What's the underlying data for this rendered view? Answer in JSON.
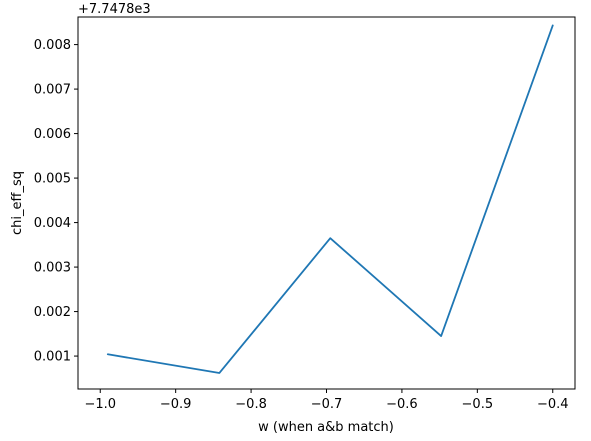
{
  "chart_data": {
    "type": "line",
    "title": "",
    "xlabel": "w (when a&b match)",
    "ylabel": "chi_eff_sq",
    "y_offset_label": "+7.7478e3",
    "xlim": [
      -1.0295,
      -0.3705
    ],
    "ylim": [
      0.00026,
      0.00862
    ],
    "x_ticks": [
      -1.0,
      -0.9,
      -0.8,
      -0.7,
      -0.6,
      -0.5,
      -0.4
    ],
    "x_tick_labels": [
      "−1.0",
      "−0.9",
      "−0.8",
      "−0.7",
      "−0.6",
      "−0.5",
      "−0.4"
    ],
    "y_ticks": [
      0.001,
      0.002,
      0.003,
      0.004,
      0.005,
      0.006,
      0.007,
      0.008
    ],
    "y_tick_labels": [
      "0.001",
      "0.002",
      "0.003",
      "0.004",
      "0.005",
      "0.006",
      "0.007",
      "0.008"
    ],
    "grid": false,
    "legend": "none",
    "series": [
      {
        "x": [
          -0.99,
          -0.842,
          -0.695,
          -0.548,
          -0.4
        ],
        "y": [
          0.00104,
          0.00062,
          0.00365,
          0.00145,
          0.00843
        ],
        "color": "#1f77b4"
      }
    ]
  }
}
